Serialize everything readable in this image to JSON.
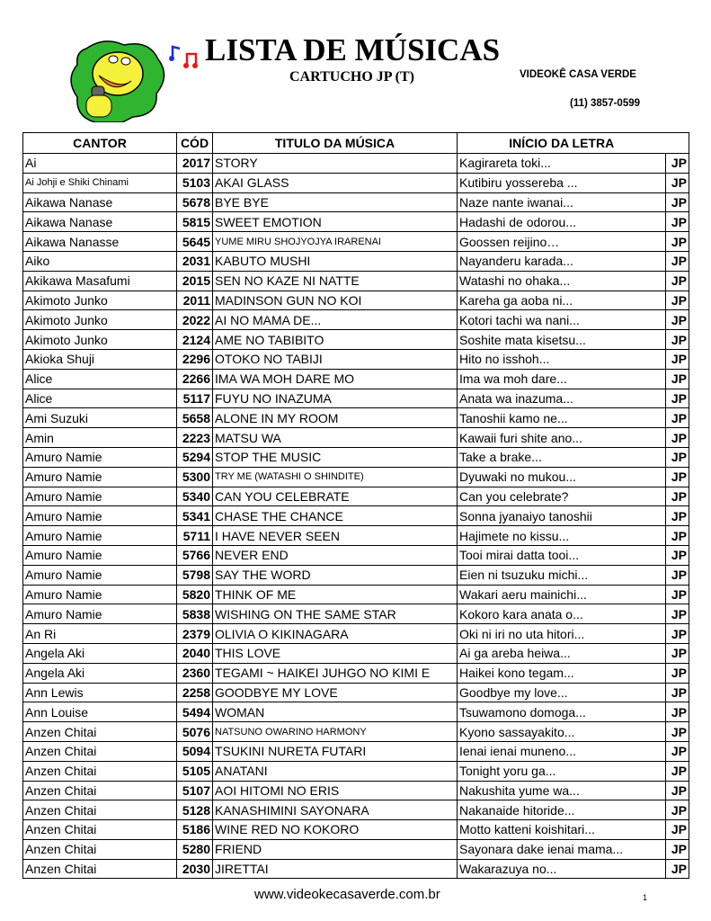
{
  "header": {
    "title": "LISTA DE MÚSICAS",
    "subtitle": "CARTUCHO JP (T)",
    "company": "VIDEOKÊ CASA VERDE",
    "phone": "(11) 3857-0599"
  },
  "columns": {
    "cantor": "CANTOR",
    "cod": "CÓD",
    "titulo": "TITULO DA MÚSICA",
    "inicio": "INÍCIO DA LETRA"
  },
  "rows": [
    {
      "cantor": "Ai",
      "cod": "2017",
      "titulo": "STORY",
      "inicio": "Kagirareta toki...",
      "tag": "JP"
    },
    {
      "cantor": "Ai Johji e Shiki Chinami",
      "cod": "5103",
      "titulo": "AKAI GLASS",
      "inicio": "Kutibiru yossereba ...",
      "tag": "JP",
      "small_cantor": true
    },
    {
      "cantor": "Aikawa Nanase",
      "cod": "5678",
      "titulo": "BYE BYE",
      "inicio": "Naze nante iwanai...",
      "tag": "JP"
    },
    {
      "cantor": "Aikawa Nanase",
      "cod": "5815",
      "titulo": "SWEET EMOTION",
      "inicio": "Hadashi de odorou...",
      "tag": "JP"
    },
    {
      "cantor": "Aikawa Nanasse",
      "cod": "5645",
      "titulo": "YUME MIRU SHOJYOJYA IRARENAI",
      "inicio": "Goossen reijino…",
      "tag": "JP",
      "small_title": true
    },
    {
      "cantor": "Aiko",
      "cod": "2031",
      "titulo": "KABUTO MUSHI",
      "inicio": "Nayanderu karada...",
      "tag": "JP"
    },
    {
      "cantor": "Akikawa Masafumi",
      "cod": "2015",
      "titulo": "SEN NO KAZE NI NATTE",
      "inicio": "Watashi no ohaka...",
      "tag": "JP"
    },
    {
      "cantor": "Akimoto Junko",
      "cod": "2011",
      "titulo": "MADINSON GUN NO KOI",
      "inicio": "Kareha ga aoba ni...",
      "tag": "JP"
    },
    {
      "cantor": "Akimoto Junko",
      "cod": "2022",
      "titulo": "AI NO MAMA DE...",
      "inicio": "Kotori tachi wa nani...",
      "tag": "JP"
    },
    {
      "cantor": "Akimoto Junko",
      "cod": "2124",
      "titulo": "AME NO TABIBITO",
      "inicio": "Soshite mata kisetsu...",
      "tag": "JP"
    },
    {
      "cantor": "Akioka Shuji",
      "cod": "2296",
      "titulo": "OTOKO NO TABIJI",
      "inicio": "Hito no isshoh...",
      "tag": "JP"
    },
    {
      "cantor": "Alice",
      "cod": "2266",
      "titulo": "IMA WA MOH DARE MO",
      "inicio": "Ima wa moh dare...",
      "tag": "JP"
    },
    {
      "cantor": "Alice",
      "cod": "5117",
      "titulo": "FUYU NO INAZUMA",
      "inicio": "Anata wa inazuma...",
      "tag": "JP"
    },
    {
      "cantor": "Ami Suzuki",
      "cod": "5658",
      "titulo": "ALONE IN MY ROOM",
      "inicio": "Tanoshii kamo ne...",
      "tag": "JP"
    },
    {
      "cantor": "Amin",
      "cod": "2223",
      "titulo": "MATSU WA",
      "inicio": "Kawaii furi shite ano...",
      "tag": "JP"
    },
    {
      "cantor": "Amuro Namie",
      "cod": "5294",
      "titulo": "STOP THE MUSIC",
      "inicio": "Take a brake...",
      "tag": "JP"
    },
    {
      "cantor": "Amuro Namie",
      "cod": "5300",
      "titulo": "TRY ME (WATASHI O SHINDITE)",
      "inicio": "Dyuwaki no mukou...",
      "tag": "JP",
      "small_title": true
    },
    {
      "cantor": "Amuro Namie",
      "cod": "5340",
      "titulo": "CAN YOU CELEBRATE",
      "inicio": "Can you celebrate?",
      "tag": "JP"
    },
    {
      "cantor": "Amuro Namie",
      "cod": "5341",
      "titulo": "CHASE THE CHANCE",
      "inicio": "Sonna jyanaiyo tanoshii",
      "tag": "JP"
    },
    {
      "cantor": "Amuro Namie",
      "cod": "5711",
      "titulo": "I HAVE NEVER SEEN",
      "inicio": "Hajimete no kissu...",
      "tag": "JP"
    },
    {
      "cantor": "Amuro Namie",
      "cod": "5766",
      "titulo": "NEVER END",
      "inicio": "Tooi mirai datta tooi...",
      "tag": "JP"
    },
    {
      "cantor": "Amuro Namie",
      "cod": "5798",
      "titulo": "SAY THE WORD",
      "inicio": "Eien ni tsuzuku michi...",
      "tag": "JP"
    },
    {
      "cantor": "Amuro Namie",
      "cod": "5820",
      "titulo": "THINK OF ME",
      "inicio": "Wakari aeru mainichi...",
      "tag": "JP"
    },
    {
      "cantor": "Amuro Namie",
      "cod": "5838",
      "titulo": "WISHING ON THE SAME STAR",
      "inicio": "Kokoro kara anata o...",
      "tag": "JP"
    },
    {
      "cantor": "An Ri",
      "cod": "2379",
      "titulo": "OLIVIA O KIKINAGARA",
      "inicio": "Oki ni iri no uta hitori...",
      "tag": "JP"
    },
    {
      "cantor": "Angela Aki",
      "cod": "2040",
      "titulo": "THIS LOVE",
      "inicio": "Ai ga areba heiwa...",
      "tag": "JP"
    },
    {
      "cantor": "Angela Aki",
      "cod": "2360",
      "titulo": "TEGAMI ~ HAIKEI JUHGO NO KIMI E",
      "inicio": "Haikei kono tegam...",
      "tag": "JP"
    },
    {
      "cantor": "Ann Lewis",
      "cod": "2258",
      "titulo": "GOODBYE MY LOVE",
      "inicio": "Goodbye my love...",
      "tag": "JP"
    },
    {
      "cantor": "Ann Louise",
      "cod": "5494",
      "titulo": "WOMAN",
      "inicio": "Tsuwamono domoga...",
      "tag": "JP"
    },
    {
      "cantor": "Anzen Chitai",
      "cod": "5076",
      "titulo": "NATSUNO OWARINO HARMONY",
      "inicio": "Kyono sassayakito...",
      "tag": "JP",
      "small_title": true
    },
    {
      "cantor": "Anzen Chitai",
      "cod": "5094",
      "titulo": "TSUKINI NURETA FUTARI",
      "inicio": "Ienai ienai muneno...",
      "tag": "JP"
    },
    {
      "cantor": "Anzen Chitai",
      "cod": "5105",
      "titulo": "ANATANI",
      "inicio": "Tonight yoru ga...",
      "tag": "JP"
    },
    {
      "cantor": "Anzen Chitai",
      "cod": "5107",
      "titulo": "AOI HITOMI NO ERIS",
      "inicio": "Nakushita yume wa...",
      "tag": "JP"
    },
    {
      "cantor": "Anzen Chitai",
      "cod": "5128",
      "titulo": "KANASHIMINI SAYONARA",
      "inicio": "Nakanaide hitoride...",
      "tag": "JP"
    },
    {
      "cantor": "Anzen Chitai",
      "cod": "5186",
      "titulo": "WINE RED NO KOKORO",
      "inicio": "Motto katteni koishitari...",
      "tag": "JP"
    },
    {
      "cantor": "Anzen Chitai",
      "cod": "5280",
      "titulo": "FRIEND",
      "inicio": "Sayonara dake ienai mama...",
      "tag": "JP"
    },
    {
      "cantor": "Anzen Chitai",
      "cod": "2030",
      "titulo": "JIRETTAI",
      "inicio": "Wakarazuya no...",
      "tag": "JP"
    }
  ],
  "footer": {
    "website": "www.videokecasaverde.com.br",
    "page": "1"
  },
  "colors": {
    "logo_green": "#2fb52f",
    "logo_yellow": "#f5f03a",
    "note_blue": "#1a2ee0",
    "note_red": "#e01a1a"
  }
}
